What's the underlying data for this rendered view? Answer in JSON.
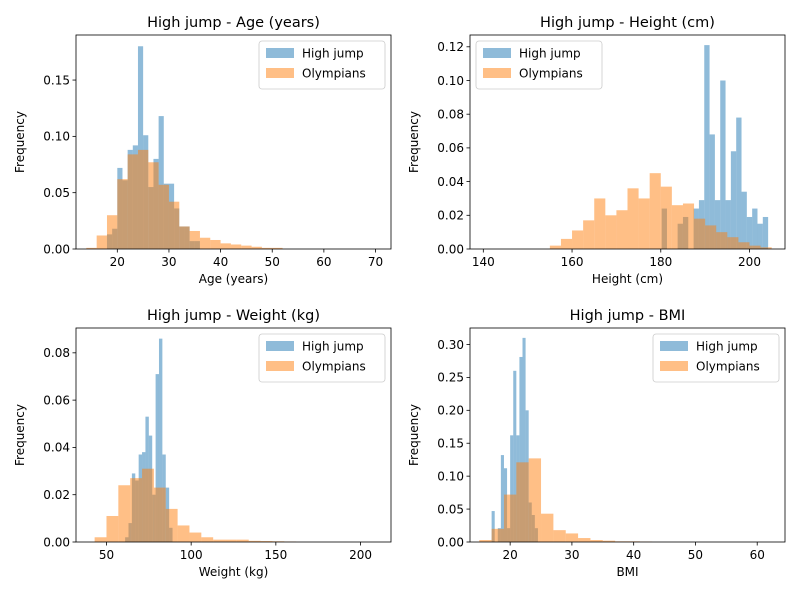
{
  "colors": {
    "high_jump": "#1f77b4",
    "olympians": "#ff7f0e",
    "bar_alpha": 0.5
  },
  "chart_data": [
    {
      "type": "bar",
      "title": "High jump - Age (years)",
      "xlabel": "Age (years)",
      "ylabel": "Frequency",
      "xlim": [
        12,
        73
      ],
      "ylim": [
        0,
        0.19
      ],
      "xticks": [
        20,
        30,
        40,
        50,
        60,
        70
      ],
      "xtick_labels": [
        "20",
        "30",
        "40",
        "50",
        "60",
        "70"
      ],
      "yticks": [
        0.0,
        0.05,
        0.1,
        0.15
      ],
      "ytick_labels": [
        "0.00",
        "0.05",
        "0.10",
        "0.15"
      ],
      "legend": [
        "High jump",
        "Olympians"
      ],
      "legend_position": "top-right",
      "series": [
        {
          "name": "High jump",
          "color": "#1f77b4",
          "bins": [
            [
              18,
              19,
              0.013
            ],
            [
              19,
              20,
              0.018
            ],
            [
              20,
              21,
              0.072
            ],
            [
              21,
              22,
              0.061
            ],
            [
              22,
              23,
              0.088
            ],
            [
              23,
              24,
              0.092
            ],
            [
              24,
              25,
              0.18
            ],
            [
              25,
              26,
              0.101
            ],
            [
              26,
              27,
              0.055
            ],
            [
              27,
              28,
              0.08
            ],
            [
              28,
              29,
              0.118
            ],
            [
              29,
              30,
              0.058
            ],
            [
              30,
              31,
              0.058
            ],
            [
              31,
              32,
              0.036
            ],
            [
              32,
              33,
              0.02
            ],
            [
              33,
              34,
              0.02
            ],
            [
              34,
              35,
              0.007
            ],
            [
              35,
              36,
              0.007
            ]
          ]
        },
        {
          "name": "Olympians",
          "color": "#ff7f0e",
          "bins": [
            [
              14,
              16,
              0.001
            ],
            [
              16,
              18,
              0.012
            ],
            [
              18,
              20,
              0.03
            ],
            [
              20,
              22,
              0.062
            ],
            [
              22,
              24,
              0.084
            ],
            [
              24,
              26,
              0.088
            ],
            [
              26,
              28,
              0.077
            ],
            [
              28,
              30,
              0.057
            ],
            [
              30,
              32,
              0.042
            ],
            [
              32,
              34,
              0.02
            ],
            [
              34,
              36,
              0.016
            ],
            [
              36,
              38,
              0.01
            ],
            [
              38,
              40,
              0.008
            ],
            [
              40,
              42,
              0.005
            ],
            [
              42,
              44,
              0.004
            ],
            [
              44,
              46,
              0.003
            ],
            [
              46,
              48,
              0.002
            ],
            [
              48,
              50,
              0.001
            ],
            [
              50,
              52,
              0.001
            ]
          ]
        }
      ]
    },
    {
      "type": "bar",
      "title": "High jump - Height (cm)",
      "xlabel": "Height (cm)",
      "ylabel": "Frequency",
      "xlim": [
        137,
        208
      ],
      "ylim": [
        0,
        0.127
      ],
      "xticks": [
        140,
        160,
        180,
        200
      ],
      "xtick_labels": [
        "140",
        "160",
        "180",
        "200"
      ],
      "yticks": [
        0.0,
        0.02,
        0.04,
        0.06,
        0.08,
        0.1,
        0.12
      ],
      "ytick_labels": [
        "0.00",
        "0.02",
        "0.04",
        "0.06",
        "0.08",
        "0.10",
        "0.12"
      ],
      "legend": [
        "High jump",
        "Olympians"
      ],
      "legend_position": "top-left",
      "series": [
        {
          "name": "High jump",
          "color": "#1f77b4",
          "bins": [
            [
              179,
              180.2,
              0.0
            ],
            [
              180.2,
              181.4,
              0.024
            ],
            [
              181.4,
              182.6,
              0.0
            ],
            [
              182.6,
              183.8,
              0.0
            ],
            [
              183.8,
              185,
              0.015
            ],
            [
              185,
              186.2,
              0.019
            ],
            [
              186.2,
              187.4,
              0.0
            ],
            [
              187.4,
              188.6,
              0.024
            ],
            [
              188.6,
              189.8,
              0.029
            ],
            [
              189.8,
              191,
              0.121
            ],
            [
              191,
              192.2,
              0.068
            ],
            [
              192.2,
              193.4,
              0.029
            ],
            [
              193.4,
              194.6,
              0.1
            ],
            [
              194.6,
              195.8,
              0.029
            ],
            [
              195.8,
              197,
              0.058
            ],
            [
              197,
              198.2,
              0.078
            ],
            [
              198.2,
              199.4,
              0.034
            ],
            [
              199.4,
              200.6,
              0.019
            ],
            [
              200.6,
              201.8,
              0.024
            ],
            [
              201.8,
              203,
              0.015
            ],
            [
              203,
              204.2,
              0.019
            ]
          ]
        },
        {
          "name": "Olympians",
          "color": "#ff7f0e",
          "bins": [
            [
              155,
              157.5,
              0.002
            ],
            [
              157.5,
              160,
              0.006
            ],
            [
              160,
              162.5,
              0.011
            ],
            [
              162.5,
              165,
              0.017
            ],
            [
              165,
              167.5,
              0.03
            ],
            [
              167.5,
              170,
              0.02
            ],
            [
              170,
              172.5,
              0.023
            ],
            [
              172.5,
              175,
              0.036
            ],
            [
              175,
              177.5,
              0.03
            ],
            [
              177.5,
              180,
              0.045
            ],
            [
              180,
              182.5,
              0.037
            ],
            [
              182.5,
              185,
              0.026
            ],
            [
              185,
              187.5,
              0.027
            ],
            [
              187.5,
              190,
              0.018
            ],
            [
              190,
              192.5,
              0.014
            ],
            [
              192.5,
              195,
              0.01
            ],
            [
              195,
              197.5,
              0.007
            ],
            [
              197.5,
              200,
              0.004
            ],
            [
              200,
              202.5,
              0.002
            ],
            [
              202.5,
              205,
              0.001
            ]
          ]
        }
      ]
    },
    {
      "type": "bar",
      "title": "High jump - Weight (kg)",
      "xlabel": "Weight (kg)",
      "ylabel": "Frequency",
      "xlim": [
        32,
        218
      ],
      "ylim": [
        0,
        0.0905
      ],
      "xticks": [
        50,
        100,
        150,
        200
      ],
      "xtick_labels": [
        "50",
        "100",
        "150",
        "200"
      ],
      "yticks": [
        0.0,
        0.02,
        0.04,
        0.06,
        0.08
      ],
      "ytick_labels": [
        "0.00",
        "0.02",
        "0.04",
        "0.06",
        "0.08"
      ],
      "legend": [
        "High jump",
        "Olympians"
      ],
      "legend_position": "top-right",
      "series": [
        {
          "name": "High jump",
          "color": "#1f77b4",
          "bins": [
            [
              61,
              63,
              0.002
            ],
            [
              63,
              65,
              0.008
            ],
            [
              65,
              67,
              0.029
            ],
            [
              67,
              69,
              0.026
            ],
            [
              69,
              71,
              0.037
            ],
            [
              71,
              73,
              0.038
            ],
            [
              73,
              75,
              0.053
            ],
            [
              75,
              77,
              0.045
            ],
            [
              77,
              79,
              0.02
            ],
            [
              79,
              81,
              0.071
            ],
            [
              81,
              83,
              0.086
            ],
            [
              83,
              85,
              0.037
            ],
            [
              85,
              87,
              0.023
            ],
            [
              87,
              89,
              0.006
            ]
          ]
        },
        {
          "name": "Olympians",
          "color": "#ff7f0e",
          "bins": [
            [
              43,
              50,
              0.002
            ],
            [
              50,
              57,
              0.011
            ],
            [
              57,
              64,
              0.024
            ],
            [
              64,
              71,
              0.027
            ],
            [
              71,
              78,
              0.031
            ],
            [
              78,
              85,
              0.023
            ],
            [
              85,
              92,
              0.014
            ],
            [
              92,
              99,
              0.007
            ],
            [
              99,
              106,
              0.004
            ],
            [
              106,
              113,
              0.002
            ],
            [
              113,
              120,
              0.001
            ],
            [
              120,
              127,
              0.001
            ],
            [
              127,
              134,
              0.001
            ],
            [
              134,
              141,
              0.0005
            ],
            [
              141,
              148,
              0.0004
            ],
            [
              148,
              155,
              0.0003
            ],
            [
              155,
              162,
              0.0002
            ]
          ]
        }
      ]
    },
    {
      "type": "bar",
      "title": "High jump - BMI",
      "xlabel": "BMI",
      "ylabel": "Frequency",
      "xlim": [
        13.5,
        64.5
      ],
      "ylim": [
        0,
        0.325
      ],
      "xticks": [
        20,
        30,
        40,
        50,
        60
      ],
      "xtick_labels": [
        "20",
        "30",
        "40",
        "50",
        "60"
      ],
      "yticks": [
        0.0,
        0.05,
        0.1,
        0.15,
        0.2,
        0.25,
        0.3
      ],
      "ytick_labels": [
        "0.00",
        "0.05",
        "0.10",
        "0.15",
        "0.20",
        "0.25",
        "0.30"
      ],
      "legend": [
        "High jump",
        "Olympians"
      ],
      "legend_position": "top-right",
      "series": [
        {
          "name": "High jump",
          "color": "#1f77b4",
          "bins": [
            [
              17,
              17.5,
              0.047
            ],
            [
              17.5,
              18,
              0.0
            ],
            [
              18,
              18.5,
              0.021
            ],
            [
              18.5,
              19,
              0.132
            ],
            [
              19,
              19.5,
              0.112
            ],
            [
              19.5,
              20,
              0.021
            ],
            [
              20,
              20.5,
              0.162
            ],
            [
              20.5,
              21,
              0.26
            ],
            [
              21,
              21.5,
              0.162
            ],
            [
              21.5,
              22,
              0.281
            ],
            [
              22,
              22.5,
              0.31
            ],
            [
              22.5,
              23,
              0.2
            ],
            [
              23,
              23.5,
              0.06
            ],
            [
              23.5,
              24,
              0.041
            ],
            [
              24,
              24.5,
              0.021
            ]
          ]
        },
        {
          "name": "Olympians",
          "color": "#ff7f0e",
          "bins": [
            [
              15,
              17,
              0.003
            ],
            [
              17,
              19,
              0.02
            ],
            [
              19,
              21,
              0.072
            ],
            [
              21,
              23,
              0.121
            ],
            [
              23,
              25,
              0.127
            ],
            [
              25,
              27,
              0.043
            ],
            [
              27,
              29,
              0.018
            ],
            [
              29,
              31,
              0.013
            ],
            [
              31,
              33,
              0.006
            ],
            [
              33,
              35,
              0.003
            ],
            [
              35,
              37,
              0.002
            ],
            [
              37,
              39,
              0.001
            ],
            [
              39,
              41,
              0.001
            ],
            [
              41,
              43,
              0.0006
            ]
          ]
        }
      ]
    }
  ]
}
